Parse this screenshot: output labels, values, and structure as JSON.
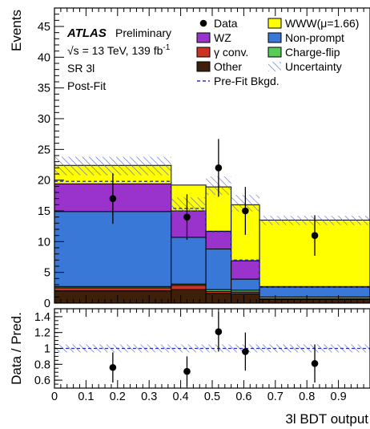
{
  "chart_data": [
    {
      "type": "bar",
      "stacked": true,
      "x_bin_edges": [
        0,
        0.37,
        0.48,
        0.56,
        0.65,
        1.0
      ],
      "xlim": [
        0,
        1.0
      ],
      "ylim": [
        0,
        48
      ],
      "y_ticks": [
        0,
        5,
        10,
        15,
        20,
        25,
        30,
        35,
        40,
        45
      ],
      "x_ticks": [
        0,
        0.1,
        0.2,
        0.3,
        0.4,
        0.5,
        0.6,
        0.7,
        0.8,
        0.9
      ],
      "x_tick_labels": [
        "0",
        "0.1",
        "0.2",
        "0.3",
        "0.4",
        "0.5",
        "0.6",
        "0.7",
        "0.8",
        "0.9"
      ],
      "ylabel": "Events",
      "xlabel": "3l BDT output",
      "series": [
        {
          "name": "Other",
          "color": "#3d1f0a",
          "values": [
            2.0,
            2.2,
            1.6,
            1.5,
            0.6
          ]
        },
        {
          "name": "γ conv.",
          "color": "#cc3322",
          "values": [
            0.5,
            0.7,
            0.3,
            0.3,
            0.1
          ]
        },
        {
          "name": "Charge-flip",
          "color": "#55cc55",
          "values": [
            0.2,
            0.2,
            0.3,
            0.3,
            0.3
          ]
        },
        {
          "name": "Non-prompt",
          "color": "#3a78d8",
          "values": [
            12.2,
            7.6,
            6.6,
            1.8,
            1.6
          ]
        },
        {
          "name": "WZ",
          "color": "#9933cc",
          "values": [
            4.5,
            4.3,
            2.9,
            3.0,
            0.1
          ]
        },
        {
          "name": "WWW(μ=1.66)",
          "color": "#ffff00",
          "values": [
            3.0,
            4.2,
            7.2,
            9.1,
            10.8
          ]
        }
      ],
      "uncertainty_band": {
        "down": [
          20.8,
          14.3,
          17.6,
          14.9,
          12.7
        ],
        "up": [
          23.8,
          17.2,
          20.6,
          17.6,
          14.2
        ]
      },
      "prefit_background": [
        19.8,
        15.4,
        11.6,
        7.0,
        2.6
      ],
      "data_points": [
        {
          "x": 0.185,
          "y": 17,
          "err": 4.1
        },
        {
          "x": 0.42,
          "y": 14,
          "err": 3.7
        },
        {
          "x": 0.52,
          "y": 22,
          "err": 4.7
        },
        {
          "x": 0.605,
          "y": 15,
          "err": 3.9
        },
        {
          "x": 0.825,
          "y": 11,
          "err": 3.3
        }
      ],
      "legend_placement": "top-right"
    },
    {
      "type": "scatter",
      "ylabel": "Data / Pred.",
      "xlabel": "3l BDT output",
      "xlim": [
        0,
        1.0
      ],
      "ylim": [
        0.5,
        1.5
      ],
      "y_ticks": [
        0.6,
        0.8,
        1.0,
        1.2,
        1.4
      ],
      "y_tick_labels": [
        "0.6",
        "0.8",
        "1",
        "1.2",
        "1.4"
      ],
      "ratio_points": [
        {
          "x": 0.185,
          "y": 0.76,
          "err": 0.19
        },
        {
          "x": 0.42,
          "y": 0.71,
          "err": 0.19
        },
        {
          "x": 0.52,
          "y": 1.21,
          "err": 0.25
        },
        {
          "x": 0.605,
          "y": 0.96,
          "err": 0.24
        },
        {
          "x": 0.825,
          "y": 0.81,
          "err": 0.24
        }
      ],
      "band": {
        "down": 0.95,
        "up": 1.05
      },
      "reference_line": 1.0
    }
  ],
  "annotations": {
    "atlas": "ATLAS",
    "preliminary": "Preliminary",
    "energy_prefix": "√s = 13 TeV, 139 fb",
    "energy_sup": "-1",
    "region": "SR 3l",
    "fit": "Post-Fit"
  },
  "legend": [
    {
      "label": "Data",
      "kind": "marker"
    },
    {
      "label": "WWW(μ=1.66)",
      "kind": "box",
      "color": "#ffff00"
    },
    {
      "label": "WZ",
      "kind": "box",
      "color": "#9933cc"
    },
    {
      "label": "Non-prompt",
      "kind": "box",
      "color": "#3a78d8"
    },
    {
      "label": "γ conv.",
      "kind": "box",
      "color": "#cc3322"
    },
    {
      "label": "Charge-flip",
      "kind": "box",
      "color": "#55cc55"
    },
    {
      "label": "Other",
      "kind": "box",
      "color": "#3d1f0a"
    },
    {
      "label": "Uncertainty",
      "kind": "hatch"
    },
    {
      "label": "Pre-Fit Bkgd.",
      "kind": "dashed"
    }
  ]
}
